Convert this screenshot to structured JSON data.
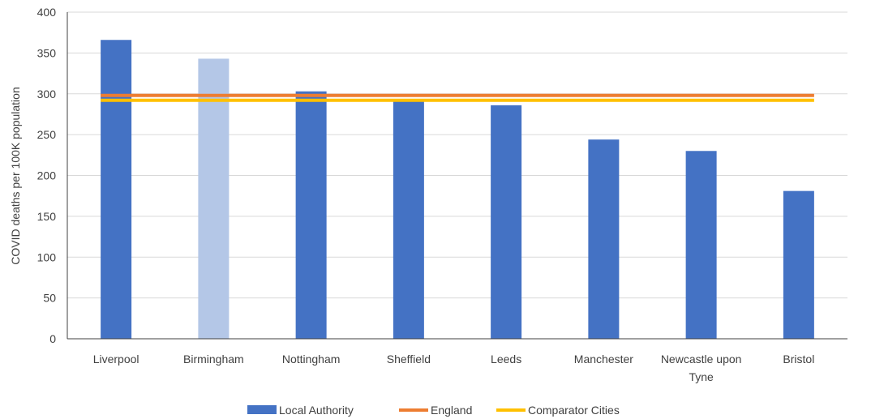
{
  "chart_data": {
    "type": "bar",
    "title": "",
    "xlabel": "",
    "ylabel": "COVID deaths per 100K population",
    "ylim": [
      0,
      400
    ],
    "yticks": [
      0,
      50,
      100,
      150,
      200,
      250,
      300,
      350,
      400
    ],
    "grid": true,
    "legend_position": "bottom",
    "categories": [
      [
        "Liverpool"
      ],
      [
        "Birmingham"
      ],
      [
        "Nottingham"
      ],
      [
        "Sheffield"
      ],
      [
        "Leeds"
      ],
      [
        "Manchester"
      ],
      [
        "Newcastle upon",
        "Tyne"
      ],
      [
        "Bristol"
      ]
    ],
    "series": [
      {
        "name": "Local Authority",
        "kind": "bar",
        "color": "#4472C4",
        "highlight_color": "#B4C7E7",
        "highlight_index": 1,
        "values": [
          366,
          343,
          303,
          293,
          286,
          244,
          230,
          181
        ]
      },
      {
        "name": "England",
        "kind": "line",
        "color": "#ED7D31",
        "values": [
          298,
          298,
          298,
          298,
          298,
          298,
          298,
          298
        ]
      },
      {
        "name": "Comparator Cities",
        "kind": "line",
        "color": "#FFC000",
        "values": [
          292,
          292,
          292,
          292,
          292,
          292,
          292,
          292
        ]
      }
    ]
  }
}
